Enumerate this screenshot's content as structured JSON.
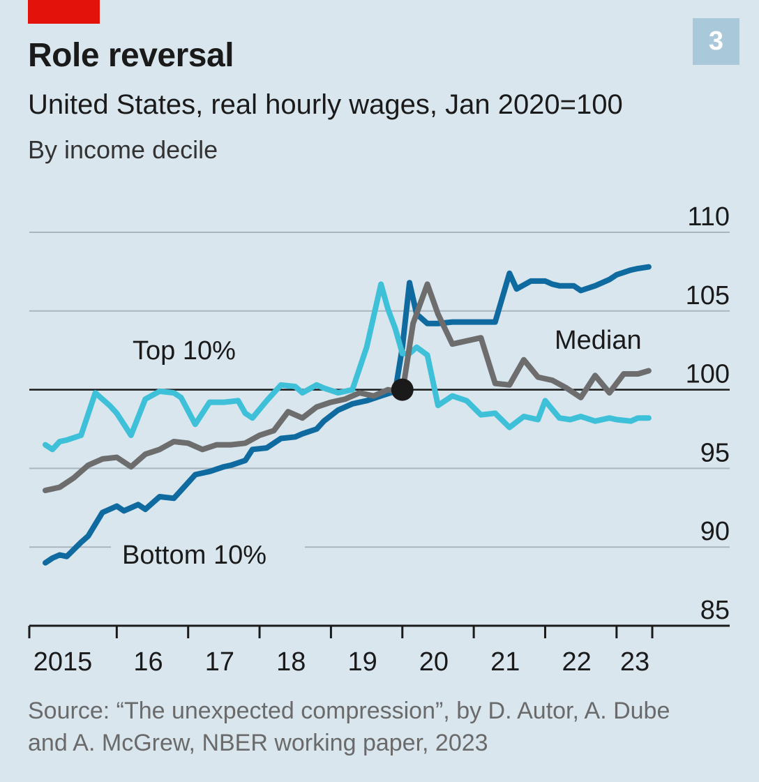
{
  "header": {
    "title": "Role reversal",
    "subtitle": "United States, real hourly wages, Jan 2020=100",
    "subsubtitle": "By income decile",
    "badge": "3"
  },
  "footer": {
    "source_line1": "Source: “The unexpected compression”, by D. Autor, A. Dube",
    "source_line2": "and A. McGrew, NBER working paper, 2023"
  },
  "colors": {
    "background": "#d9e6ee",
    "accent_red": "#e3120b",
    "top10": "#3ec1d8",
    "median": "#6d6d6d",
    "bottom10": "#0f6aa0",
    "grid": "#a9b6bf",
    "baseline": "#1a1a1a"
  },
  "chart_data": {
    "type": "line",
    "title": "Role reversal",
    "subtitle": "United States, real hourly wages, Jan 2020=100",
    "ylim": [
      85,
      110
    ],
    "yticks": [
      "110",
      "105",
      "100",
      "95",
      "90",
      "85"
    ],
    "xticks": [
      "2015",
      "16",
      "17",
      "18",
      "19",
      "20",
      "21",
      "22",
      "23"
    ],
    "x_range": [
      2015,
      2023.5
    ],
    "grid": true,
    "reference_value": 100,
    "marker": {
      "x": 2020.0,
      "y": 100
    },
    "series": [
      {
        "name": "Top 10%",
        "x": [
          2015.0,
          2015.1,
          2015.2,
          2015.3,
          2015.5,
          2015.7,
          2015.9,
          2016.0,
          2016.2,
          2016.4,
          2016.6,
          2016.8,
          2016.9,
          2017.1,
          2017.3,
          2017.5,
          2017.7,
          2017.8,
          2017.9,
          2018.1,
          2018.3,
          2018.5,
          2018.6,
          2018.8,
          2018.9,
          2019.1,
          2019.3,
          2019.5,
          2019.7,
          2019.8,
          2019.9,
          2020.0,
          2020.1,
          2020.2,
          2020.35,
          2020.5,
          2020.7,
          2020.9,
          2021.1,
          2021.3,
          2021.5,
          2021.7,
          2021.9,
          2022.0,
          2022.2,
          2022.35,
          2022.5,
          2022.7,
          2022.9,
          2023.0,
          2023.2,
          2023.3,
          2023.45
        ],
        "y": [
          96.5,
          96.2,
          96.7,
          96.8,
          97.1,
          99.8,
          99.0,
          98.5,
          97.1,
          99.4,
          99.9,
          99.8,
          99.5,
          97.8,
          99.2,
          99.2,
          99.3,
          98.5,
          98.2,
          99.3,
          100.3,
          100.2,
          99.8,
          100.3,
          100.1,
          99.8,
          100.0,
          102.7,
          106.7,
          105.1,
          103.9,
          102.3,
          102.3,
          102.7,
          102.2,
          99.0,
          99.6,
          99.3,
          98.4,
          98.5,
          97.6,
          98.3,
          98.1,
          99.3,
          98.2,
          98.1,
          98.3,
          98.0,
          98.2,
          98.1,
          98.0,
          98.2,
          98.2
        ],
        "color": "#3ec1d8"
      },
      {
        "name": "Median",
        "x": [
          2015.0,
          2015.2,
          2015.4,
          2015.6,
          2015.8,
          2016.0,
          2016.2,
          2016.4,
          2016.6,
          2016.8,
          2017.0,
          2017.2,
          2017.4,
          2017.6,
          2017.8,
          2018.0,
          2018.2,
          2018.4,
          2018.6,
          2018.8,
          2019.0,
          2019.2,
          2019.4,
          2019.6,
          2019.8,
          2020.0,
          2020.15,
          2020.35,
          2020.5,
          2020.7,
          2020.9,
          2021.1,
          2021.3,
          2021.5,
          2021.7,
          2021.9,
          2022.1,
          2022.3,
          2022.5,
          2022.7,
          2022.9,
          2023.1,
          2023.3,
          2023.45
        ],
        "y": [
          93.6,
          93.8,
          94.4,
          95.2,
          95.6,
          95.7,
          95.1,
          95.9,
          96.2,
          96.7,
          96.6,
          96.2,
          96.5,
          96.5,
          96.6,
          97.1,
          97.4,
          98.6,
          98.2,
          98.9,
          99.2,
          99.4,
          99.8,
          99.6,
          100.0,
          99.8,
          104.2,
          106.7,
          104.8,
          102.9,
          103.1,
          103.3,
          100.4,
          100.3,
          101.9,
          100.8,
          100.6,
          100.1,
          99.5,
          100.9,
          99.8,
          101.0,
          101.0,
          101.2
        ],
        "color": "#6d6d6d"
      },
      {
        "name": "Bottom 10%",
        "x": [
          2015.0,
          2015.1,
          2015.2,
          2015.3,
          2015.5,
          2015.6,
          2015.8,
          2015.9,
          2016.0,
          2016.1,
          2016.3,
          2016.4,
          2016.6,
          2016.8,
          2016.9,
          2017.1,
          2017.3,
          2017.5,
          2017.6,
          2017.8,
          2017.9,
          2018.1,
          2018.3,
          2018.5,
          2018.6,
          2018.8,
          2018.9,
          2019.1,
          2019.3,
          2019.5,
          2019.7,
          2019.9,
          2020.0,
          2020.1,
          2020.2,
          2020.35,
          2020.5,
          2020.7,
          2020.9,
          2021.0,
          2021.1,
          2021.3,
          2021.5,
          2021.6,
          2021.8,
          2022.0,
          2022.1,
          2022.2,
          2022.4,
          2022.5,
          2022.7,
          2022.9,
          2023.0,
          2023.2,
          2023.3,
          2023.45
        ],
        "y": [
          89.0,
          89.3,
          89.5,
          89.4,
          90.3,
          90.7,
          92.2,
          92.4,
          92.6,
          92.3,
          92.7,
          92.4,
          93.2,
          93.1,
          93.6,
          94.6,
          94.8,
          95.1,
          95.2,
          95.5,
          96.2,
          96.3,
          96.9,
          97.0,
          97.2,
          97.5,
          98.0,
          98.7,
          99.1,
          99.3,
          99.6,
          99.9,
          102.7,
          106.8,
          104.8,
          104.2,
          104.2,
          104.3,
          104.3,
          104.3,
          104.3,
          104.3,
          107.4,
          106.4,
          106.9,
          106.9,
          106.7,
          106.6,
          106.6,
          106.3,
          106.6,
          107.0,
          107.3,
          107.6,
          107.7,
          107.8
        ],
        "color": "#0f6aa0"
      }
    ],
    "labels": [
      {
        "series": "Top 10%",
        "text": "Top 10%"
      },
      {
        "series": "Median",
        "text": "Median"
      },
      {
        "series": "Bottom 10%",
        "text": "Bottom 10%"
      }
    ]
  }
}
